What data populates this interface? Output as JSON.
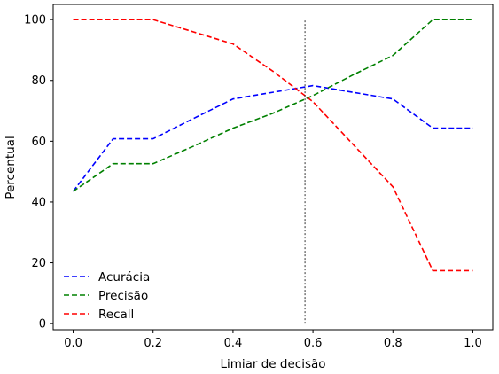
{
  "chart_data": {
    "type": "line",
    "xlabel": "Limiar de decisão",
    "ylabel": "Percentual",
    "xlim": [
      -0.05,
      1.05
    ],
    "ylim": [
      -2,
      105
    ],
    "xticks": [
      0.0,
      0.2,
      0.4,
      0.6,
      0.8,
      1.0
    ],
    "xtick_labels": [
      "0.0",
      "0.2",
      "0.4",
      "0.6",
      "0.8",
      "1.0"
    ],
    "yticks": [
      0,
      20,
      40,
      60,
      80,
      100
    ],
    "ytick_labels": [
      "0",
      "20",
      "40",
      "60",
      "80",
      "100"
    ],
    "grid": false,
    "legend_position": "lower-left",
    "x": [
      0.0,
      0.1,
      0.2,
      0.3,
      0.4,
      0.5,
      0.6,
      0.7,
      0.8,
      0.9,
      1.0
    ],
    "series": [
      {
        "name": "Acurácia",
        "color": "#0000ff",
        "style": "dashed",
        "values": [
          43.5,
          60.8,
          60.8,
          67.4,
          73.9,
          76.1,
          78.3,
          76.1,
          73.9,
          64.3,
          64.3
        ]
      },
      {
        "name": "Precisão",
        "color": "#008000",
        "style": "dashed",
        "values": [
          43.5,
          52.6,
          52.6,
          58.3,
          64.3,
          69.2,
          75.0,
          81.8,
          88.2,
          100,
          100
        ]
      },
      {
        "name": "Recall",
        "color": "#ff0000",
        "style": "dashed",
        "values": [
          100,
          100,
          100,
          96.0,
          92.0,
          83.0,
          73.0,
          59.0,
          45.0,
          17.4,
          17.4
        ]
      }
    ],
    "vertical_line": {
      "x": 0.58,
      "y_range": [
        0,
        100
      ],
      "color": "#000000",
      "style": "dashed"
    }
  }
}
